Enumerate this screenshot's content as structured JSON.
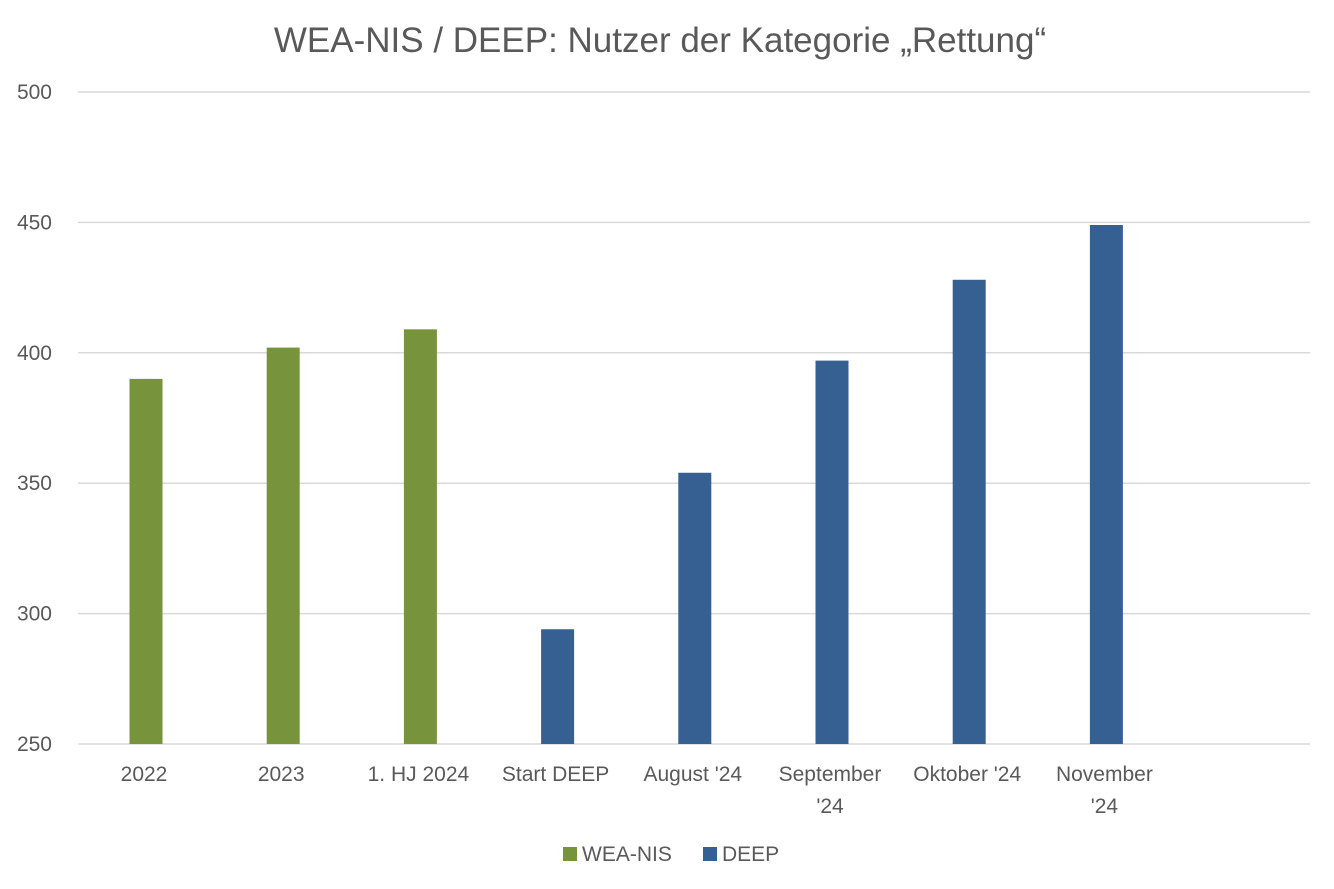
{
  "chart_data": {
    "type": "bar",
    "title": "WEA-NIS / DEEP: Nutzer der Kategorie „Rettung“",
    "categories": [
      [
        "2022"
      ],
      [
        "2023"
      ],
      [
        "1. HJ 2024"
      ],
      [
        "Start DEEP"
      ],
      [
        "August '24"
      ],
      [
        "September",
        "'24"
      ],
      [
        "Oktober '24"
      ],
      [
        "November",
        "'24"
      ]
    ],
    "series": [
      {
        "name": "WEA-NIS",
        "color": "#77933c",
        "values": [
          390,
          402,
          409,
          null,
          null,
          null,
          null,
          null
        ]
      },
      {
        "name": "DEEP",
        "color": "#366092",
        "values": [
          null,
          null,
          null,
          294,
          354,
          397,
          428,
          449
        ]
      }
    ],
    "yticks": [
      "500",
      "450",
      "400",
      "350",
      "300",
      "250"
    ],
    "ylim": [
      250,
      500
    ],
    "grid": true,
    "legend_position": "bottom"
  }
}
